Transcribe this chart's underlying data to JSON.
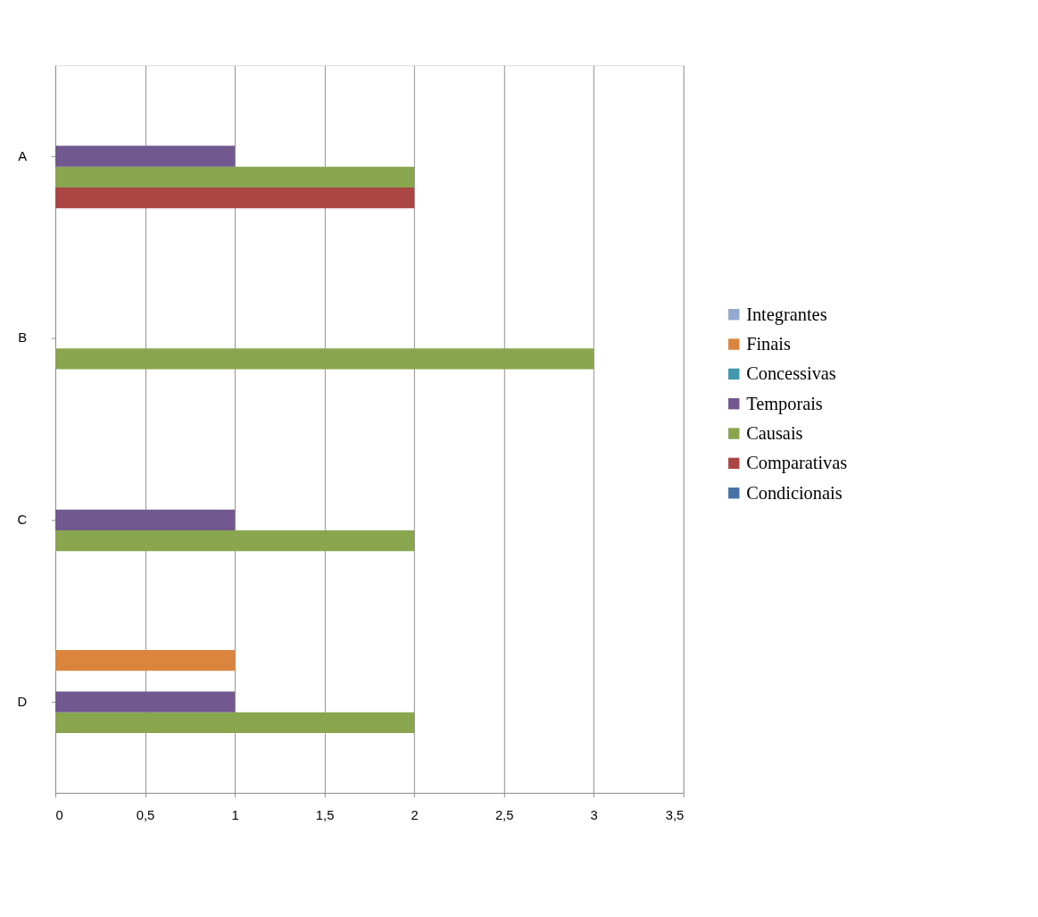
{
  "chart_data": {
    "type": "bar",
    "orientation": "horizontal",
    "categories": [
      "A",
      "B",
      "C",
      "D"
    ],
    "series": [
      {
        "name": "Condicionais",
        "color": "#4572a7",
        "values": [
          0,
          0,
          0,
          0
        ]
      },
      {
        "name": "Comparativas",
        "color": "#aa4643",
        "values": [
          2,
          0,
          0,
          0
        ]
      },
      {
        "name": "Causais",
        "color": "#89a54e",
        "values": [
          2,
          3,
          2,
          2
        ]
      },
      {
        "name": "Temporais",
        "color": "#71588f",
        "values": [
          1,
          0,
          1,
          1
        ]
      },
      {
        "name": "Concessivas",
        "color": "#4198af",
        "values": [
          0,
          0,
          0,
          0
        ]
      },
      {
        "name": "Finais",
        "color": "#db843d",
        "values": [
          0,
          0,
          0,
          1
        ]
      },
      {
        "name": "Integrantes",
        "color": "#93a9cf",
        "values": [
          0,
          0,
          0,
          0
        ]
      }
    ],
    "xlim": [
      0,
      3.5
    ],
    "xticks": [
      0,
      {
        "value": 0.5,
        "label": "0,5"
      },
      1,
      {
        "value": 1.5,
        "label": "1,5"
      },
      2,
      {
        "value": 2.5,
        "label": "2,5"
      },
      3,
      {
        "value": 3.5,
        "label": "3,5"
      }
    ],
    "grid": "x",
    "legend": "right"
  }
}
